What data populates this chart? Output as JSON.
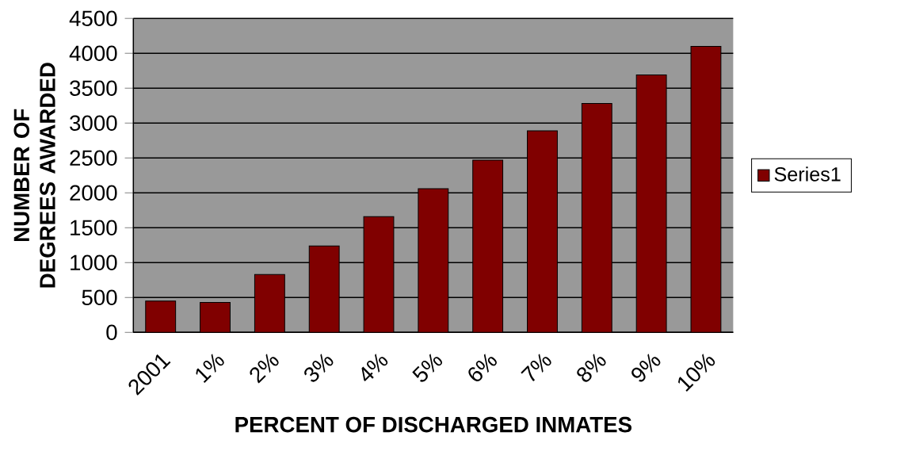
{
  "chart_data": {
    "type": "bar",
    "xlabel": "PERCENT  OF DISCHARGED INMATES",
    "ylabel": "NUMBER OF DEGREES AWARDED",
    "categories": [
      "2001",
      "1%",
      "2%",
      "3%",
      "4%",
      "5%",
      "6%",
      "7%",
      "8%",
      "9%",
      "10%"
    ],
    "series": [
      {
        "name": "Series1",
        "color": "#800000",
        "values": [
          450,
          430,
          830,
          1240,
          1660,
          2060,
          2470,
          2890,
          3280,
          3690,
          4100
        ]
      }
    ],
    "ylim": [
      0,
      4500
    ],
    "yticks": [
      0,
      500,
      1000,
      1500,
      2000,
      2500,
      3000,
      3500,
      4000,
      4500
    ],
    "grid": "y",
    "legend": "right"
  }
}
